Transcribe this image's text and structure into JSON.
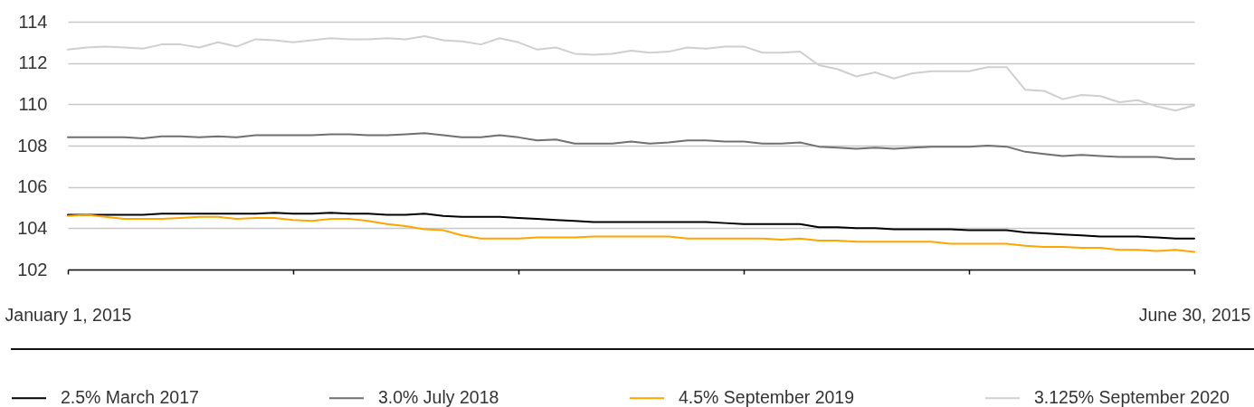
{
  "chart_data": {
    "type": "line",
    "x": [
      "2015-01-01",
      "2015-01-04",
      "2015-01-07",
      "2015-01-10",
      "2015-01-13",
      "2015-01-16",
      "2015-01-19",
      "2015-01-22",
      "2015-01-25",
      "2015-01-28",
      "2015-01-31",
      "2015-02-03",
      "2015-02-06",
      "2015-02-09",
      "2015-02-12",
      "2015-02-15",
      "2015-02-18",
      "2015-02-21",
      "2015-02-24",
      "2015-02-27",
      "2015-03-02",
      "2015-03-05",
      "2015-03-08",
      "2015-03-11",
      "2015-03-14",
      "2015-03-17",
      "2015-03-20",
      "2015-03-23",
      "2015-03-26",
      "2015-03-29",
      "2015-04-01",
      "2015-04-04",
      "2015-04-07",
      "2015-04-10",
      "2015-04-13",
      "2015-04-16",
      "2015-04-19",
      "2015-04-22",
      "2015-04-25",
      "2015-04-28",
      "2015-05-01",
      "2015-05-04",
      "2015-05-07",
      "2015-05-10",
      "2015-05-13",
      "2015-05-16",
      "2015-05-19",
      "2015-05-22",
      "2015-05-25",
      "2015-05-28",
      "2015-05-31",
      "2015-06-03",
      "2015-06-06",
      "2015-06-09",
      "2015-06-12",
      "2015-06-15",
      "2015-06-18",
      "2015-06-21",
      "2015-06-24",
      "2015-06-27",
      "2015-06-30"
    ],
    "xlim": [
      "2015-01-01",
      "2015-06-30"
    ],
    "xticks": [
      {
        "value": "2015-01-01",
        "label": "January 1, 2015"
      },
      {
        "value": "2015-02-06",
        "label": null
      },
      {
        "value": "2015-03-14",
        "label": null
      },
      {
        "value": "2015-04-19",
        "label": null
      },
      {
        "value": "2015-05-25",
        "label": null
      },
      {
        "value": "2015-06-30",
        "label": "June 30, 2015"
      }
    ],
    "ylim": [
      102,
      114
    ],
    "yticks": [
      102,
      104,
      106,
      108,
      110,
      112,
      114
    ],
    "grid": "y",
    "legend": "bottom",
    "series": [
      {
        "name": "2.5% March 2017",
        "color": "#000000",
        "values": [
          104.65,
          104.65,
          104.65,
          104.65,
          104.65,
          104.7,
          104.7,
          104.7,
          104.7,
          104.7,
          104.7,
          104.75,
          104.7,
          104.7,
          104.75,
          104.7,
          104.7,
          104.65,
          104.65,
          104.7,
          104.6,
          104.55,
          104.55,
          104.55,
          104.5,
          104.45,
          104.4,
          104.35,
          104.3,
          104.3,
          104.3,
          104.3,
          104.3,
          104.3,
          104.3,
          104.25,
          104.2,
          104.2,
          104.2,
          104.2,
          104.05,
          104.05,
          104.0,
          104.0,
          103.95,
          103.95,
          103.95,
          103.95,
          103.9,
          103.9,
          103.9,
          103.8,
          103.75,
          103.7,
          103.65,
          103.6,
          103.6,
          103.6,
          103.55,
          103.5,
          103.5
        ]
      },
      {
        "name": "3.0% July 2018",
        "color": "#707070",
        "values": [
          108.4,
          108.4,
          108.4,
          108.4,
          108.35,
          108.45,
          108.45,
          108.4,
          108.45,
          108.4,
          108.5,
          108.5,
          108.5,
          108.5,
          108.55,
          108.55,
          108.5,
          108.5,
          108.55,
          108.6,
          108.5,
          108.4,
          108.4,
          108.5,
          108.4,
          108.25,
          108.3,
          108.1,
          108.1,
          108.1,
          108.2,
          108.1,
          108.15,
          108.25,
          108.25,
          108.2,
          108.2,
          108.1,
          108.1,
          108.15,
          107.95,
          107.9,
          107.85,
          107.9,
          107.85,
          107.9,
          107.95,
          107.95,
          107.95,
          108.0,
          107.95,
          107.7,
          107.6,
          107.5,
          107.55,
          107.5,
          107.45,
          107.45,
          107.45,
          107.35,
          107.35
        ]
      },
      {
        "name": "4.5% September 2019",
        "color": "#ffa500",
        "values": [
          104.6,
          104.65,
          104.55,
          104.45,
          104.45,
          104.45,
          104.5,
          104.55,
          104.55,
          104.45,
          104.5,
          104.5,
          104.4,
          104.35,
          104.45,
          104.45,
          104.35,
          104.2,
          104.1,
          103.95,
          103.9,
          103.65,
          103.5,
          103.5,
          103.5,
          103.55,
          103.55,
          103.55,
          103.6,
          103.6,
          103.6,
          103.6,
          103.6,
          103.5,
          103.5,
          103.5,
          103.5,
          103.5,
          103.45,
          103.5,
          103.4,
          103.4,
          103.35,
          103.35,
          103.35,
          103.35,
          103.35,
          103.25,
          103.25,
          103.25,
          103.25,
          103.15,
          103.1,
          103.1,
          103.05,
          103.05,
          102.95,
          102.95,
          102.9,
          102.95,
          102.85
        ]
      },
      {
        "name": "3.125% September 2020",
        "color": "#cfcfcf",
        "values": [
          112.65,
          112.75,
          112.8,
          112.75,
          112.7,
          112.9,
          112.9,
          112.75,
          113.0,
          112.8,
          113.15,
          113.1,
          113.0,
          113.1,
          113.2,
          113.15,
          113.15,
          113.2,
          113.15,
          113.3,
          113.1,
          113.05,
          112.9,
          113.2,
          113.0,
          112.65,
          112.75,
          112.45,
          112.4,
          112.45,
          112.6,
          112.5,
          112.55,
          112.75,
          112.7,
          112.8,
          112.8,
          112.5,
          112.5,
          112.55,
          111.9,
          111.7,
          111.35,
          111.55,
          111.25,
          111.5,
          111.6,
          111.6,
          111.6,
          111.8,
          111.8,
          110.7,
          110.65,
          110.25,
          110.45,
          110.4,
          110.1,
          110.2,
          109.9,
          109.7,
          109.95
        ]
      }
    ]
  }
}
